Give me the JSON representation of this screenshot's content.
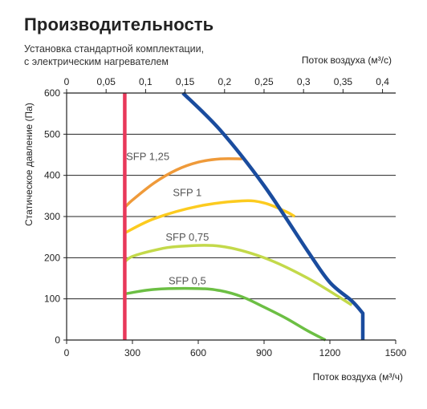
{
  "header": {
    "title": "Производительность",
    "subtitle_line1": "Установка стандартной комплектации,",
    "subtitle_line2": "с электрическим нагревателем"
  },
  "chart_data": {
    "type": "line",
    "xlabel": "Поток воздуха (м³/ч)",
    "x2label": "Поток воздуха (м³/с)",
    "ylabel": "Статическое давление (Па)",
    "xlim": [
      0,
      1500
    ],
    "x2lim": [
      0,
      0.4167
    ],
    "ylim": [
      0,
      600
    ],
    "xticks": [
      0,
      300,
      600,
      900,
      1200,
      1500
    ],
    "x2ticks": [
      "0",
      "0,05",
      "0,1",
      "0,15",
      "0,2",
      "0,25",
      "0,3",
      "0,35",
      "0,4"
    ],
    "x2tick_values": [
      0,
      0.05,
      0.1,
      0.15,
      0.2,
      0.25,
      0.3,
      0.35,
      0.4
    ],
    "yticks": [
      0,
      100,
      200,
      300,
      400,
      500,
      600
    ],
    "grid": true,
    "series": [
      {
        "name": "SFP 1,25",
        "color": "#ef9a3a",
        "x": [
          265,
          300,
          400,
          500,
          600,
          700,
          800
        ],
        "y": [
          322,
          340,
          382,
          413,
          432,
          440,
          440
        ]
      },
      {
        "name": "SFP 1",
        "color": "#fccb1f",
        "x": [
          265,
          400,
          600,
          800,
          900,
          1000,
          1040
        ],
        "y": [
          260,
          295,
          325,
          338,
          333,
          312,
          300
        ]
      },
      {
        "name": "SFP 0,75",
        "color": "#c3d94a",
        "x": [
          265,
          300,
          400,
          500,
          700,
          900,
          1100,
          1300
        ],
        "y": [
          190,
          203,
          218,
          227,
          228,
          200,
          150,
          85
        ]
      },
      {
        "name": "SFP 0,5",
        "color": "#6cbf44",
        "x": [
          265,
          400,
          600,
          700,
          800,
          900,
          1000,
          1100,
          1180
        ],
        "y": [
          112,
          123,
          125,
          120,
          105,
          80,
          53,
          22,
          0
        ]
      },
      {
        "name": "",
        "color": "#e8385a",
        "x": [
          265,
          265
        ],
        "y": [
          0,
          600
        ]
      },
      {
        "name": "",
        "color": "#1a4c9e",
        "x": [
          530,
          700,
          900,
          1100,
          1200,
          1300,
          1350,
          1350
        ],
        "y": [
          600,
          510,
          375,
          215,
          140,
          95,
          65,
          0
        ]
      }
    ],
    "labels": [
      {
        "text": "SFP 1,25",
        "x": 370,
        "y": 445
      },
      {
        "text": "SFP 1",
        "x": 550,
        "y": 357
      },
      {
        "text": "SFP 0,75",
        "x": 550,
        "y": 249
      },
      {
        "text": "SFP 0,5",
        "x": 550,
        "y": 143
      }
    ]
  }
}
